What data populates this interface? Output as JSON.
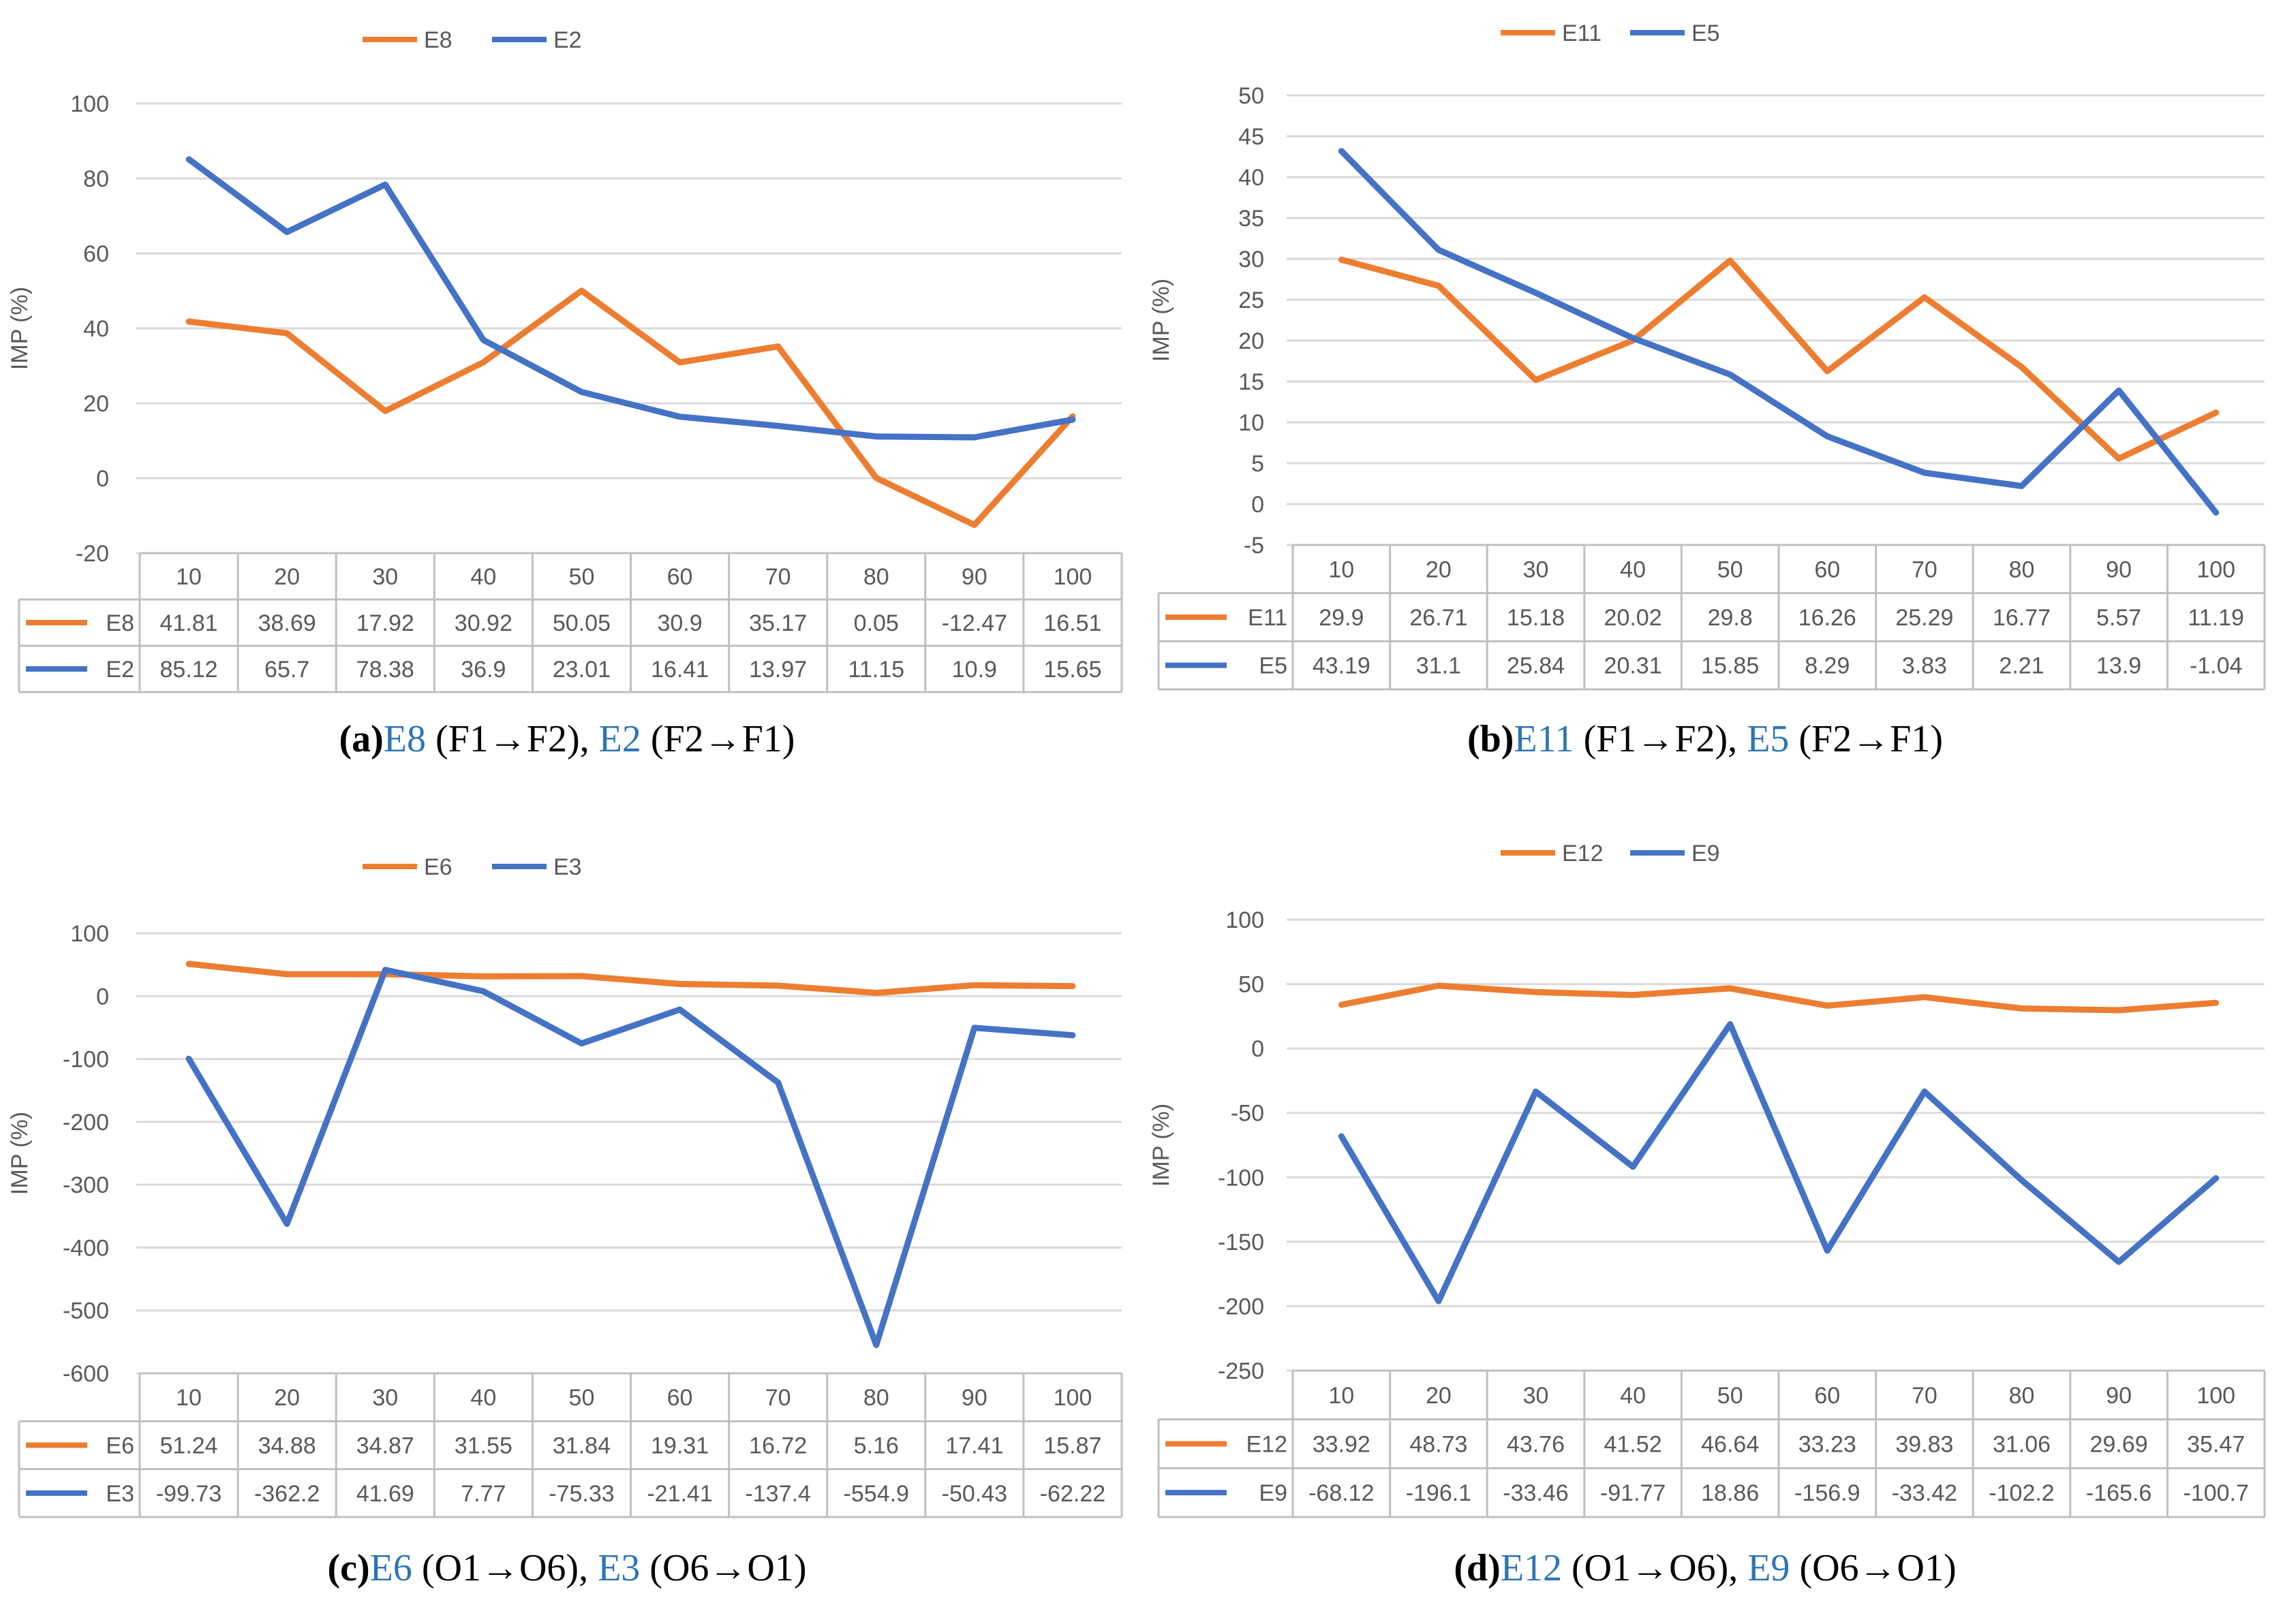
{
  "colors": {
    "orange": "#ED7D31",
    "blue": "#4472C4",
    "caption_blue": "#2E75B6",
    "grid": "#D9D9D9",
    "tick": "#595959"
  },
  "chart_data": [
    {
      "type": "line",
      "ylabel": "IMP (%)",
      "ylim": [
        -20,
        100
      ],
      "yticks": [
        100,
        80,
        60,
        40,
        20,
        0,
        -20
      ],
      "categories": [
        "10",
        "20",
        "30",
        "40",
        "50",
        "60",
        "70",
        "80",
        "90",
        "100"
      ],
      "series": [
        {
          "name": "E8",
          "color": "orange",
          "values": [
            41.81,
            38.69,
            17.92,
            30.92,
            50.05,
            30.9,
            35.17,
            0.05,
            -12.47,
            16.51
          ],
          "labels": [
            "41.81",
            "38.69",
            "17.92",
            "30.92",
            "50.05",
            "30.9",
            "35.17",
            "0.05",
            "-12.47",
            "16.51"
          ]
        },
        {
          "name": "E2",
          "color": "blue",
          "values": [
            85.12,
            65.7,
            78.38,
            36.9,
            23.01,
            16.41,
            13.97,
            11.15,
            10.9,
            15.65
          ],
          "labels": [
            "85.12",
            "65.7",
            "78.38",
            "36.9",
            "23.01",
            "16.41",
            "13.97",
            "11.15",
            "10.9",
            "15.65"
          ]
        }
      ],
      "legend_position": "top",
      "grid": true,
      "caption": {
        "letter": "(a)",
        "s1": "E8",
        "d1": " (F1→F2), ",
        "s2": "E2",
        "d2": " (F2→F1)"
      }
    },
    {
      "type": "line",
      "ylabel": "IMP (%)",
      "ylim": [
        -5,
        50
      ],
      "yticks": [
        50,
        45,
        40,
        35,
        30,
        25,
        20,
        15,
        10,
        5,
        0,
        -5
      ],
      "categories": [
        "10",
        "20",
        "30",
        "40",
        "50",
        "60",
        "70",
        "80",
        "90",
        "100"
      ],
      "series": [
        {
          "name": "E11",
          "color": "orange",
          "values": [
            29.9,
            26.71,
            15.18,
            20.02,
            29.8,
            16.26,
            25.29,
            16.77,
            5.57,
            11.19
          ],
          "labels": [
            "29.9",
            "26.71",
            "15.18",
            "20.02",
            "29.8",
            "16.26",
            "25.29",
            "16.77",
            "5.57",
            "11.19"
          ]
        },
        {
          "name": "E5",
          "color": "blue",
          "values": [
            43.19,
            31.1,
            25.84,
            20.31,
            15.85,
            8.29,
            3.83,
            2.21,
            13.9,
            -1.04
          ],
          "labels": [
            "43.19",
            "31.1",
            "25.84",
            "20.31",
            "15.85",
            "8.29",
            "3.83",
            "2.21",
            "13.9",
            "-1.04"
          ]
        }
      ],
      "legend_position": "top",
      "grid": true,
      "caption": {
        "letter": "(b)",
        "s1": "E11",
        "d1": " (F1→F2), ",
        "s2": "E5",
        "d2": " (F2→F1)"
      }
    },
    {
      "type": "line",
      "ylabel": "IMP (%)",
      "ylim": [
        -600,
        100
      ],
      "yticks": [
        100,
        0,
        -100,
        -200,
        -300,
        -400,
        -500,
        -600
      ],
      "categories": [
        "10",
        "20",
        "30",
        "40",
        "50",
        "60",
        "70",
        "80",
        "90",
        "100"
      ],
      "series": [
        {
          "name": "E6",
          "color": "orange",
          "values": [
            51.24,
            34.88,
            34.87,
            31.55,
            31.84,
            19.31,
            16.72,
            5.16,
            17.41,
            15.87
          ],
          "labels": [
            "51.24",
            "34.88",
            "34.87",
            "31.55",
            "31.84",
            "19.31",
            "16.72",
            "5.16",
            "17.41",
            "15.87"
          ]
        },
        {
          "name": "E3",
          "color": "blue",
          "values": [
            -99.73,
            -362.2,
            41.69,
            7.77,
            -75.33,
            -21.41,
            -137.4,
            -554.9,
            -50.43,
            -62.22
          ],
          "labels": [
            "-99.73",
            "-362.2",
            "41.69",
            "7.77",
            "-75.33",
            "-21.41",
            "-137.4",
            "-554.9",
            "-50.43",
            "-62.22"
          ]
        }
      ],
      "legend_position": "top",
      "grid": true,
      "caption": {
        "letter": "(c)",
        "s1": "E6",
        "d1": " (O1→O6), ",
        "s2": "E3",
        "d2": " (O6→O1)"
      }
    },
    {
      "type": "line",
      "ylabel": "IMP (%)",
      "ylim": [
        -250,
        100
      ],
      "yticks": [
        100,
        50,
        0,
        -50,
        -100,
        -150,
        -200,
        -250
      ],
      "categories": [
        "10",
        "20",
        "30",
        "40",
        "50",
        "60",
        "70",
        "80",
        "90",
        "100"
      ],
      "series": [
        {
          "name": "E12",
          "color": "orange",
          "values": [
            33.92,
            48.73,
            43.76,
            41.52,
            46.64,
            33.23,
            39.83,
            31.06,
            29.69,
            35.47
          ],
          "labels": [
            "33.92",
            "48.73",
            "43.76",
            "41.52",
            "46.64",
            "33.23",
            "39.83",
            "31.06",
            "29.69",
            "35.47"
          ]
        },
        {
          "name": "E9",
          "color": "blue",
          "values": [
            -68.12,
            -196.1,
            -33.46,
            -91.77,
            18.86,
            -156.9,
            -33.42,
            -102.2,
            -165.6,
            -100.7
          ],
          "labels": [
            "-68.12",
            "-196.1",
            "-33.46",
            "-91.77",
            "18.86",
            "-156.9",
            "-33.42",
            "-102.2",
            "-165.6",
            "-100.7"
          ]
        }
      ],
      "legend_position": "top",
      "grid": true,
      "caption": {
        "letter": "(d)",
        "s1": "E12",
        "d1": " (O1→O6), ",
        "s2": "E9",
        "d2": " (O6→O1)"
      }
    }
  ]
}
